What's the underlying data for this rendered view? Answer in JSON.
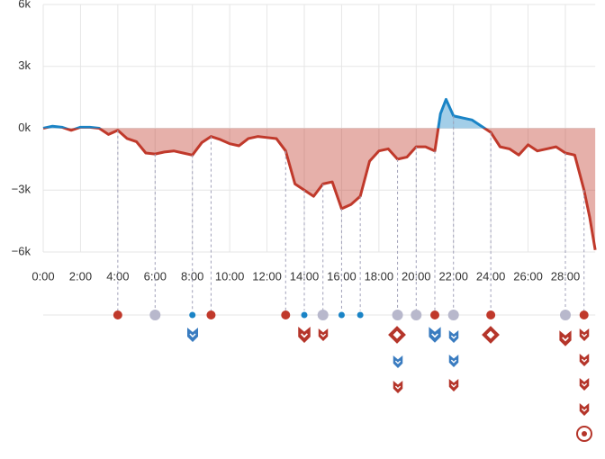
{
  "chart_data": {
    "type": "area-advantage",
    "x": [
      0,
      0.5,
      1,
      1.5,
      2,
      2.5,
      3,
      3.5,
      4,
      4.5,
      5,
      5.5,
      6,
      6.5,
      7,
      7.5,
      8,
      8.5,
      9,
      9.5,
      10,
      10.5,
      11,
      11.5,
      12,
      12.5,
      13,
      13.5,
      14,
      14.5,
      15,
      15.5,
      16,
      16.5,
      17,
      17.5,
      18,
      18.5,
      19,
      19.5,
      20,
      20.5,
      21,
      21.3,
      21.6,
      22,
      22.5,
      23,
      23.5,
      24,
      24.5,
      25,
      25.5,
      26,
      26.5,
      27,
      27.5,
      28,
      28.5,
      29,
      29.3,
      29.6
    ],
    "values": [
      0,
      100,
      50,
      -100,
      50,
      50,
      0,
      -300,
      -100,
      -500,
      -650,
      -1200,
      -1250,
      -1150,
      -1100,
      -1200,
      -1300,
      -700,
      -400,
      -550,
      -750,
      -850,
      -500,
      -400,
      -450,
      -500,
      -1100,
      -2700,
      -3000,
      -3300,
      -2700,
      -2600,
      -3900,
      -3700,
      -3300,
      -1600,
      -1100,
      -1000,
      -1500,
      -1400,
      -900,
      -900,
      -1100,
      700,
      1400,
      600,
      500,
      400,
      100,
      -200,
      -900,
      -1000,
      -1300,
      -800,
      -1100,
      -1000,
      -900,
      -1200,
      -1300,
      -3000,
      -4300,
      -5900
    ],
    "positive_color": "#1a84c6",
    "negative_color": "#c0392b",
    "xlim": [
      0,
      29.6
    ],
    "xticks": [
      {
        "value": 0,
        "label": "0:00"
      },
      {
        "value": 2,
        "label": "2:00"
      },
      {
        "value": 4,
        "label": "4:00"
      },
      {
        "value": 6,
        "label": "6:00"
      },
      {
        "value": 8,
        "label": "8:00"
      },
      {
        "value": 10,
        "label": "10:00"
      },
      {
        "value": 12,
        "label": "12:00"
      },
      {
        "value": 14,
        "label": "14:00"
      },
      {
        "value": 16,
        "label": "16:00"
      },
      {
        "value": 18,
        "label": "18:00"
      },
      {
        "value": 20,
        "label": "20:00"
      },
      {
        "value": 22,
        "label": "22:00"
      },
      {
        "value": 24,
        "label": "24:00"
      },
      {
        "value": 26,
        "label": "26:00"
      },
      {
        "value": 28,
        "label": "28:00"
      }
    ],
    "ylim": [
      -6000,
      6000
    ],
    "yticks": [
      {
        "value": 6000,
        "label": "6k"
      },
      {
        "value": 3000,
        "label": "3k"
      },
      {
        "value": 0,
        "label": "0k"
      },
      {
        "value": -3000,
        "label": "−3k"
      },
      {
        "value": -6000,
        "label": "−6k"
      }
    ],
    "grid": true,
    "events": {
      "x": [
        4,
        6,
        8,
        9,
        13,
        14,
        15,
        16,
        17,
        19,
        20,
        21,
        22,
        24,
        28,
        29
      ],
      "colors": [
        "#c0392b",
        "#b8b8cc",
        "#1a84c6",
        "#c0392b",
        "#c0392b",
        "#1a84c6",
        "#b8b8cc",
        "#1a84c6",
        "#1a84c6",
        "#b8b8cc",
        "#b8b8cc",
        "#c0392b",
        "#b8b8cc",
        "#c0392b",
        "#b8b8cc",
        "#c0392b"
      ]
    }
  }
}
